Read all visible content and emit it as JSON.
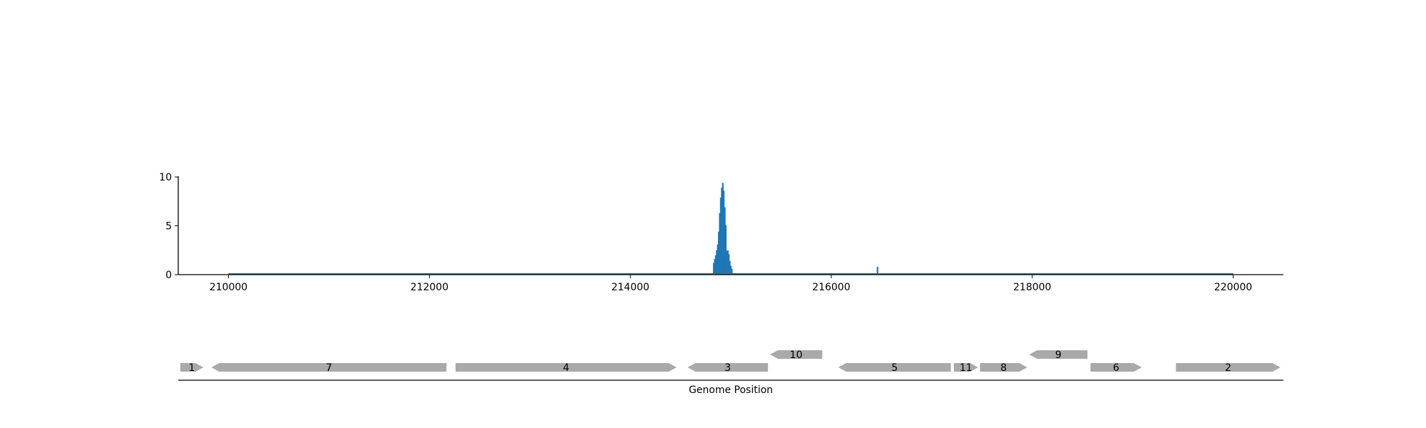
{
  "chart_data": [
    {
      "type": "bar",
      "title": "",
      "xlabel": "",
      "ylabel": "",
      "xlim": [
        209500,
        220500
      ],
      "ylim": [
        0,
        10.3
      ],
      "xticks": [
        210000,
        212000,
        214000,
        216000,
        218000,
        220000
      ],
      "yticks": [
        0,
        5,
        10
      ],
      "grid": false,
      "color": "#1f77b4",
      "baseline": {
        "start": 210000,
        "end": 220000,
        "value": 0
      },
      "x": [
        214830,
        214840,
        214850,
        214860,
        214870,
        214880,
        214890,
        214900,
        214910,
        214920,
        214930,
        214940,
        214950,
        214960,
        214970,
        214980,
        214990,
        215000,
        215010,
        216460
      ],
      "values": [
        1.2,
        1.6,
        2.0,
        2.5,
        3.1,
        4.4,
        6.3,
        7.9,
        8.9,
        9.4,
        8.6,
        6.9,
        5.1,
        2.4,
        2.5,
        2.1,
        1.4,
        0.9,
        0.6,
        0.8
      ]
    },
    {
      "type": "gene_track",
      "xlabel": "Genome Position",
      "xlim": [
        209500,
        220500
      ],
      "color": "#a9a9a9",
      "genes": [
        {
          "label": "1",
          "start": 209520,
          "end": 209750,
          "strand": "+",
          "row": 0
        },
        {
          "label": "7",
          "start": 209830,
          "end": 212170,
          "strand": "-",
          "row": 0
        },
        {
          "label": "4",
          "start": 212260,
          "end": 214460,
          "strand": "+",
          "row": 0
        },
        {
          "label": "3",
          "start": 214570,
          "end": 215370,
          "strand": "-",
          "row": 0
        },
        {
          "label": "10",
          "start": 215390,
          "end": 215910,
          "strand": "-",
          "row": 1
        },
        {
          "label": "5",
          "start": 216070,
          "end": 217190,
          "strand": "-",
          "row": 0
        },
        {
          "label": "11",
          "start": 217220,
          "end": 217460,
          "strand": "+",
          "row": 0
        },
        {
          "label": "8",
          "start": 217480,
          "end": 217950,
          "strand": "+",
          "row": 0
        },
        {
          "label": "9",
          "start": 217970,
          "end": 218550,
          "strand": "-",
          "row": 1
        },
        {
          "label": "6",
          "start": 218580,
          "end": 219090,
          "strand": "+",
          "row": 0
        },
        {
          "label": "2",
          "start": 219430,
          "end": 220470,
          "strand": "+",
          "row": 0
        }
      ]
    }
  ]
}
